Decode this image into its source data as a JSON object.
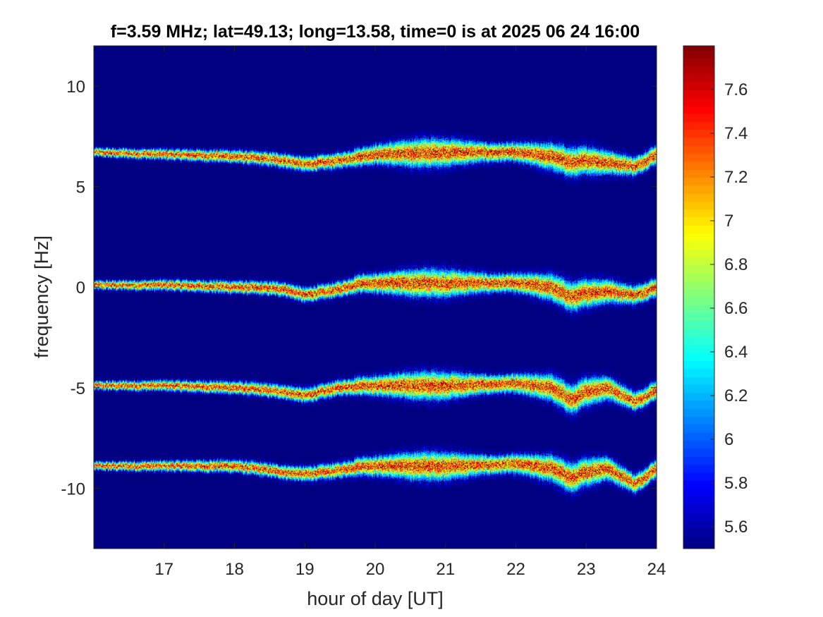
{
  "chart_data": {
    "type": "heatmap",
    "title": "f=3.59 MHz;  lat=49.13; long=13.58, time=0 is at 2025 06 24 16:00",
    "xlabel": "hour of day [UT]",
    "ylabel": "frequency [Hz]",
    "xlim": [
      16,
      24
    ],
    "ylim": [
      -13,
      12
    ],
    "xticks": [
      17,
      18,
      19,
      20,
      21,
      22,
      23,
      24
    ],
    "xtick_labels": [
      "17",
      "18",
      "19",
      "20",
      "21",
      "22",
      "23",
      "24"
    ],
    "yticks": [
      10,
      5,
      0,
      -5,
      -10
    ],
    "ytick_labels": [
      "10",
      "5",
      "0",
      "-5",
      "-10"
    ],
    "colorbar": {
      "colormap": "jet",
      "clim": [
        5.5,
        7.8
      ],
      "ticks": [
        5.6,
        5.8,
        6,
        6.2,
        6.4,
        6.6,
        6.8,
        7,
        7.2,
        7.4,
        7.6
      ],
      "tick_labels": [
        "5.6",
        "5.8",
        "6",
        "6.2",
        "6.4",
        "6.6",
        "6.8",
        "7",
        "7.2",
        "7.4",
        "7.6"
      ]
    },
    "background_value": 5.5,
    "traces": [
      {
        "center_hz": 6.7,
        "points": [
          [
            16.0,
            6.7
          ],
          [
            17.0,
            6.6
          ],
          [
            18.0,
            6.5
          ],
          [
            18.7,
            6.3
          ],
          [
            19.0,
            6.1
          ],
          [
            19.5,
            6.3
          ],
          [
            19.8,
            6.5
          ],
          [
            20.0,
            6.6
          ],
          [
            21.0,
            6.7
          ],
          [
            22.0,
            6.7
          ],
          [
            22.5,
            6.5
          ],
          [
            22.8,
            6.2
          ],
          [
            23.0,
            6.3
          ],
          [
            23.3,
            6.2
          ],
          [
            23.7,
            6.0
          ],
          [
            24.0,
            6.6
          ]
        ]
      },
      {
        "center_hz": 0.1,
        "points": [
          [
            16.0,
            0.1
          ],
          [
            17.0,
            0.1
          ],
          [
            18.0,
            0.0
          ],
          [
            18.7,
            -0.1
          ],
          [
            19.0,
            -0.4
          ],
          [
            19.5,
            -0.1
          ],
          [
            19.8,
            0.2
          ],
          [
            20.0,
            0.2
          ],
          [
            21.0,
            0.2
          ],
          [
            22.0,
            0.2
          ],
          [
            22.5,
            0.0
          ],
          [
            22.8,
            -0.5
          ],
          [
            23.0,
            -0.3
          ],
          [
            23.3,
            -0.2
          ],
          [
            23.7,
            -0.4
          ],
          [
            24.0,
            0.0
          ]
        ]
      },
      {
        "center_hz": -4.9,
        "points": [
          [
            16.0,
            -4.9
          ],
          [
            17.0,
            -4.9
          ],
          [
            18.0,
            -5.0
          ],
          [
            18.7,
            -5.2
          ],
          [
            19.0,
            -5.4
          ],
          [
            19.5,
            -5.0
          ],
          [
            19.8,
            -4.9
          ],
          [
            20.0,
            -4.9
          ],
          [
            21.0,
            -4.9
          ],
          [
            22.0,
            -4.8
          ],
          [
            22.5,
            -5.0
          ],
          [
            22.8,
            -5.6
          ],
          [
            23.0,
            -5.2
          ],
          [
            23.3,
            -5.0
          ],
          [
            23.7,
            -5.7
          ],
          [
            24.0,
            -5.1
          ]
        ]
      },
      {
        "center_hz": -8.9,
        "points": [
          [
            16.0,
            -8.9
          ],
          [
            17.0,
            -8.9
          ],
          [
            18.0,
            -8.9
          ],
          [
            18.7,
            -9.2
          ],
          [
            19.0,
            -9.3
          ],
          [
            19.5,
            -9.1
          ],
          [
            19.8,
            -8.9
          ],
          [
            20.0,
            -8.9
          ],
          [
            21.0,
            -8.9
          ],
          [
            22.0,
            -8.8
          ],
          [
            22.5,
            -9.0
          ],
          [
            22.8,
            -9.5
          ],
          [
            23.0,
            -9.2
          ],
          [
            23.3,
            -9.0
          ],
          [
            23.7,
            -9.8
          ],
          [
            24.0,
            -9.0
          ]
        ]
      }
    ]
  }
}
